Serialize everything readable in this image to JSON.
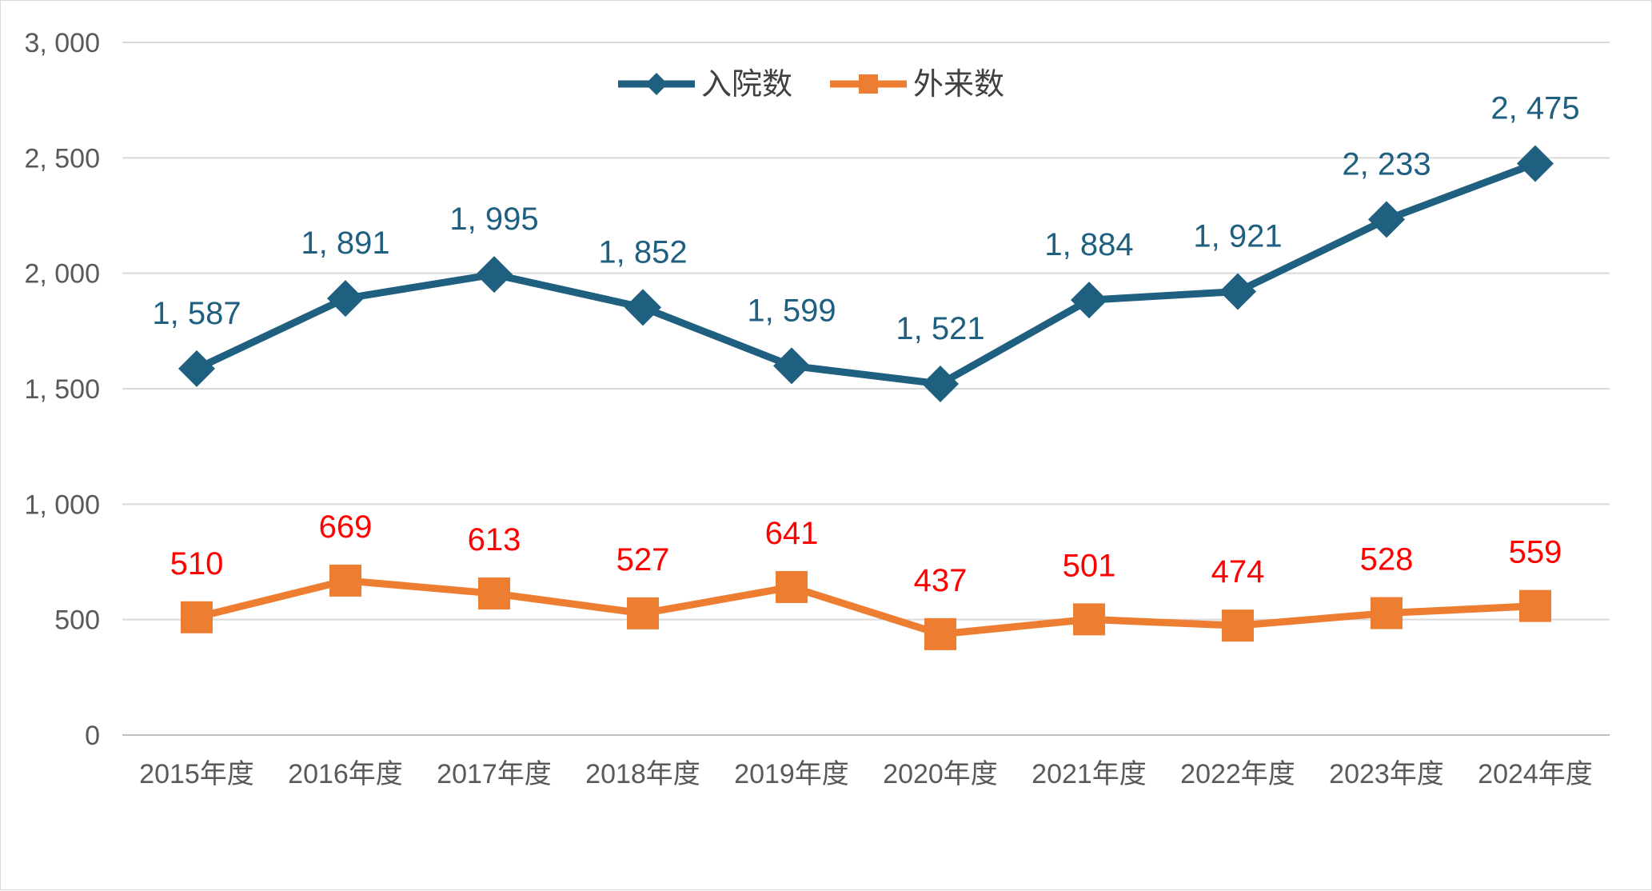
{
  "chart_data": {
    "type": "line",
    "title": "",
    "xlabel": "",
    "ylabel": "",
    "ylim": [
      0,
      3000
    ],
    "grid": true,
    "legend_position": "top-center",
    "categories": [
      "2015年度",
      "2016年度",
      "2017年度",
      "2018年度",
      "2019年度",
      "2020年度",
      "2021年度",
      "2022年度",
      "2023年度",
      "2024年度"
    ],
    "y_ticks": [
      0,
      500,
      1000,
      1500,
      2000,
      2500,
      3000
    ],
    "y_tick_labels": [
      "0",
      "500",
      "1, 000",
      "1, 500",
      "2, 000",
      "2, 500",
      "3, 000"
    ],
    "series": [
      {
        "name": "入院数",
        "color": "#1f5f80",
        "marker": "diamond",
        "label_color": "#1f5f80",
        "values": [
          1587,
          1891,
          1995,
          1852,
          1599,
          1521,
          1884,
          1921,
          2233,
          2475
        ],
        "labels": [
          "1, 587",
          "1, 891",
          "1, 995",
          "1, 852",
          "1, 599",
          "1, 521",
          "1, 884",
          "1, 921",
          "2, 233",
          "2, 475"
        ]
      },
      {
        "name": "外来数",
        "color": "#ed7d31",
        "marker": "square",
        "label_color": "#ff0000",
        "values": [
          510,
          669,
          613,
          527,
          641,
          437,
          501,
          474,
          528,
          559
        ],
        "labels": [
          "510",
          "669",
          "613",
          "527",
          "641",
          "437",
          "501",
          "474",
          "528",
          "559"
        ]
      }
    ]
  }
}
